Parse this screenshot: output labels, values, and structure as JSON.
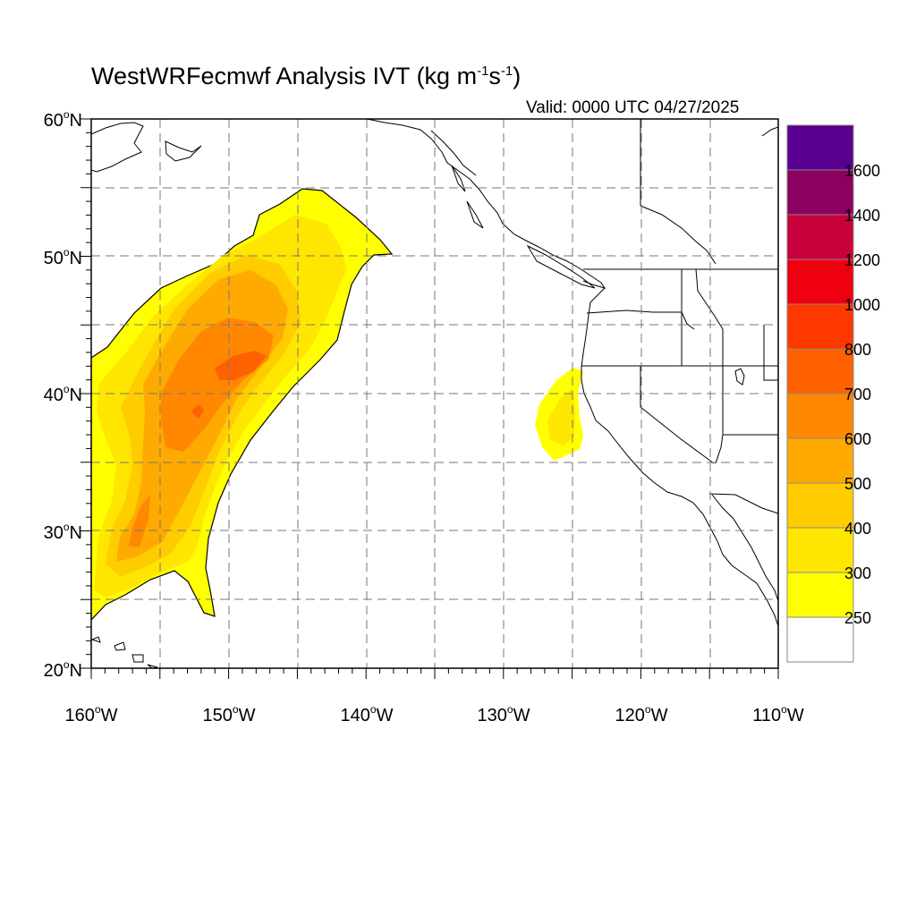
{
  "title": {
    "main": "WestWRFecmwf Analysis IVT (kg m",
    "exp1": "-1",
    "mid": "s",
    "exp2": "-1",
    "close": ")"
  },
  "valid_label": "Valid: 0000 UTC 04/27/2025",
  "lat_labels": [
    {
      "value": 60,
      "deg": "60",
      "hemi": "N"
    },
    {
      "value": 50,
      "deg": "50",
      "hemi": "N"
    },
    {
      "value": 40,
      "deg": "40",
      "hemi": "N"
    },
    {
      "value": 30,
      "deg": "30",
      "hemi": "N"
    },
    {
      "value": 20,
      "deg": "20",
      "hemi": "N"
    }
  ],
  "lon_labels": [
    {
      "value": -160,
      "deg": "160",
      "hemi": "W"
    },
    {
      "value": -150,
      "deg": "150",
      "hemi": "W"
    },
    {
      "value": -140,
      "deg": "140",
      "hemi": "W"
    },
    {
      "value": -130,
      "deg": "130",
      "hemi": "W"
    },
    {
      "value": -120,
      "deg": "120",
      "hemi": "W"
    },
    {
      "value": -110,
      "deg": "110",
      "hemi": "W"
    }
  ],
  "map_extent": {
    "lon": [
      -160,
      -110
    ],
    "lat": [
      20,
      60
    ]
  },
  "grid_interval_deg": 5,
  "colorbar": {
    "levels": [
      {
        "label": "",
        "color": "#ffffff"
      },
      {
        "label": "250",
        "color": "#ffff00"
      },
      {
        "label": "300",
        "color": "#ffe600"
      },
      {
        "label": "400",
        "color": "#ffcc00"
      },
      {
        "label": "500",
        "color": "#ffaa00"
      },
      {
        "label": "600",
        "color": "#ff8800"
      },
      {
        "label": "700",
        "color": "#ff6000"
      },
      {
        "label": "800",
        "color": "#ff3800"
      },
      {
        "label": "1000",
        "color": "#ee0010"
      },
      {
        "label": "1200",
        "color": "#c8003c"
      },
      {
        "label": "1400",
        "color": "#8c0060"
      },
      {
        "label": "1600",
        "color": "#5a0090"
      }
    ]
  }
}
